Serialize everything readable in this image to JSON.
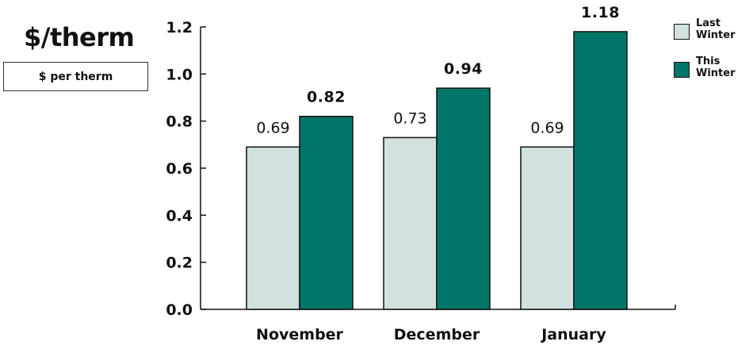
{
  "unit_title": "$/therm",
  "unit_box_label": "$ per therm",
  "colors": {
    "last_winter": "#d1e1df",
    "this_winter": "#00766a",
    "outline": "#111111"
  },
  "legend": [
    {
      "name": "Last Winter",
      "color": "#d1e1df"
    },
    {
      "name": "This Winter",
      "color": "#00766a"
    }
  ],
  "chart_data": {
    "type": "bar",
    "title": "",
    "xlabel": "",
    "ylabel": "",
    "categories": [
      "November",
      "December",
      "January"
    ],
    "series": [
      {
        "name": "Last Winter",
        "values": [
          0.69,
          0.73,
          0.69
        ],
        "labels": [
          "0.69",
          "0.73",
          "0.69"
        ],
        "bold_labels": false
      },
      {
        "name": "This Winter",
        "values": [
          0.82,
          0.94,
          1.18
        ],
        "labels": [
          "0.82",
          "0.94",
          "1.18"
        ],
        "bold_labels": true
      }
    ],
    "ylim": [
      0,
      1.2
    ],
    "yticks": [
      "0.0",
      "0.2",
      "0.4",
      "0.6",
      "0.8",
      "1.0",
      "1.2"
    ],
    "grid": false,
    "legend_position": "top-right"
  }
}
